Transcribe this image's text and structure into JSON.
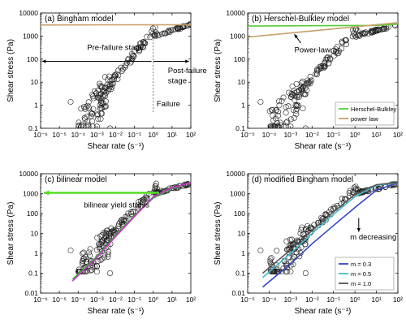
{
  "chart_data": [
    {
      "id": "a",
      "type": "scatter",
      "title": "(a) Bingham model",
      "xlabel": "Shear rate (s⁻¹)",
      "ylabel": "Shear stress (Pa)",
      "xscale": "log",
      "yscale": "log",
      "xlim": [
        1e-06,
        100
      ],
      "ylim": [
        0.1,
        10000
      ],
      "x_ticks": [
        "10⁻⁶",
        "10⁻⁵",
        "10⁻⁴",
        "10⁻³",
        "10⁻²",
        "10⁻¹",
        "10⁰",
        "10¹",
        "10²"
      ],
      "y_ticks": [
        "0.1",
        "1",
        "10",
        "100",
        "1000",
        "10000"
      ],
      "lines": [
        {
          "color": "#c8a06a",
          "x": [
            1e-06,
            100
          ],
          "y": [
            3000,
            3100
          ]
        }
      ],
      "annotations": [
        {
          "text": "Pre-failure stage",
          "x": 0.0003,
          "y": 250
        },
        {
          "text": "Post-failure",
          "x": 6,
          "y": 25
        },
        {
          "text": "stage",
          "x": 6,
          "y": 9
        },
        {
          "text": "Failure",
          "x": 1.5,
          "y": 0.9
        }
      ],
      "arrows": [
        {
          "x1": 0.8,
          "y1": 80,
          "x2": 1.2e-06,
          "y2": 80
        },
        {
          "x1": 1.0,
          "y1": 80,
          "x2": 80,
          "y2": 80
        }
      ],
      "vline": {
        "x": 1.0,
        "y1": 0.5,
        "y2": 1500
      }
    },
    {
      "id": "b",
      "type": "scatter",
      "title": "(b) Herschel-Bulkley model",
      "xlabel": "Shear rate (s⁻¹)",
      "ylabel": "Shear stress (Pa)",
      "xscale": "log",
      "yscale": "log",
      "xlim": [
        1e-05,
        100
      ],
      "ylim": [
        0.1,
        10000
      ],
      "x_ticks": [
        "10⁻⁵",
        "10⁻⁴",
        "10⁻³",
        "10⁻²",
        "10⁻¹",
        "10⁰",
        "10¹",
        "10²"
      ],
      "y_ticks": [
        "0.1",
        "1",
        "10",
        "100",
        "1000",
        "10000"
      ],
      "lines": [
        {
          "color": "#55cc33",
          "x": [
            1e-05,
            10,
            100
          ],
          "y": [
            2700,
            2900,
            3300
          ]
        },
        {
          "color": "#c8a06a",
          "x": [
            1e-05,
            100
          ],
          "y": [
            900,
            3800
          ]
        }
      ],
      "legend": [
        {
          "label": "Herschel-Bulkley",
          "color": "#55cc33"
        },
        {
          "label": "power law",
          "color": "#c8a06a"
        }
      ],
      "legend_position": "bottom-right",
      "annotations": [
        {
          "text": "Power-law",
          "x": 0.0015,
          "y": 200
        }
      ],
      "arrows": [
        {
          "x1": 0.003,
          "y1": 500,
          "x2": 0.0015,
          "y2": 1200
        }
      ]
    },
    {
      "id": "c",
      "type": "scatter",
      "title": "(c) bilinear model",
      "xlabel": "Shear rate (s⁻¹)",
      "ylabel": "Shear stress (Pa)",
      "xscale": "log",
      "yscale": "log",
      "xlim": [
        1e-06,
        100
      ],
      "ylim": [
        0.01,
        10000
      ],
      "x_ticks": [
        "10⁻⁶",
        "10⁻⁵",
        "10⁻⁴",
        "10⁻³",
        "10⁻²",
        "10⁻¹",
        "10⁰",
        "10¹",
        "10²"
      ],
      "y_ticks": [
        "0.01",
        "0.1",
        "1",
        "10",
        "100",
        "1000",
        "10000"
      ],
      "lines": [
        {
          "color": "#33aa33",
          "x": [
            5e-05,
            0.001,
            0.01,
            0.1,
            1,
            10,
            100
          ],
          "y": [
            0.05,
            0.7,
            8,
            80,
            600,
            1800,
            3800
          ]
        },
        {
          "color": "#cc33cc",
          "x": [
            5e-05,
            0.001,
            0.01,
            0.1,
            1,
            10,
            100
          ],
          "y": [
            0.04,
            0.6,
            7,
            70,
            700,
            2000,
            3600
          ]
        }
      ],
      "annotations": [
        {
          "text": "bilinear yield stress",
          "x": 0.0002,
          "y": 200
        }
      ],
      "arrows": [
        {
          "x1": 2,
          "y1": 1100,
          "x2": 1.5e-06,
          "y2": 1100,
          "color": "#55dd22"
        }
      ]
    },
    {
      "id": "d",
      "type": "scatter",
      "title": "(d) modified Bingham model",
      "xlabel": "Shear rate (s⁻¹)",
      "ylabel": "Shear stress (Pa)",
      "xscale": "log",
      "yscale": "log",
      "xlim": [
        1e-05,
        100
      ],
      "ylim": [
        0.01,
        10000
      ],
      "x_ticks": [
        "10⁻⁵",
        "10⁻⁴",
        "10⁻³",
        "10⁻²",
        "10⁻¹",
        "10⁰",
        "10¹",
        "10²"
      ],
      "y_ticks": [
        "0.01",
        "0.1",
        "1",
        "10",
        "100",
        "1000",
        "10000"
      ],
      "lines": [
        {
          "color": "#3344cc",
          "x": [
            5e-05,
            0.001,
            0.01,
            0.1,
            1,
            10,
            100
          ],
          "y": [
            0.02,
            0.3,
            3,
            25,
            200,
            1500,
            3500
          ]
        },
        {
          "color": "#44bbcc",
          "x": [
            5e-05,
            0.001,
            0.01,
            0.1,
            1,
            10,
            100
          ],
          "y": [
            0.06,
            1,
            10,
            90,
            700,
            2600,
            3600
          ]
        },
        {
          "color": "#555555",
          "x": [
            5e-05,
            0.001,
            0.01,
            0.1,
            1,
            10,
            100
          ],
          "y": [
            0.1,
            1.5,
            14,
            120,
            900,
            2800,
            3700
          ]
        }
      ],
      "legend": [
        {
          "label": "m = 0.3",
          "color": "#3344cc"
        },
        {
          "label": "m = 0.5",
          "color": "#44bbcc"
        },
        {
          "label": "m = 1.0",
          "color": "#555555"
        }
      ],
      "legend_position": "bottom-right",
      "annotations": [
        {
          "text": "m decreasing",
          "x": 0.6,
          "y": 5
        }
      ],
      "arrows": [
        {
          "x1": 1.5,
          "y1": 60,
          "x2": 1.5,
          "y2": 12
        }
      ]
    }
  ]
}
